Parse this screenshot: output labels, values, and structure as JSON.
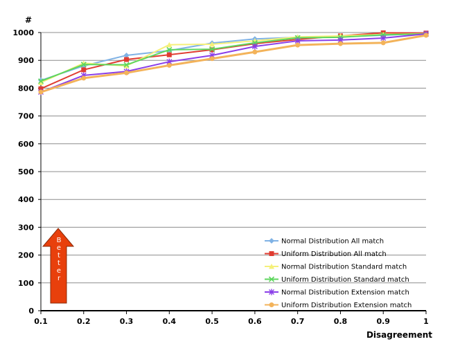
{
  "chart_data": {
    "type": "line",
    "xlabel": "Disagreement",
    "ylabel": "#",
    "xlim": [
      0.1,
      1
    ],
    "ylim": [
      0,
      1000
    ],
    "x_ticks": [
      "0.1",
      "0.2",
      "0.3",
      "0.4",
      "0.5",
      "0.6",
      "0.7",
      "0.8",
      "0.9",
      "1"
    ],
    "y_ticks": [
      "0",
      "100",
      "200",
      "300",
      "400",
      "500",
      "600",
      "700",
      "800",
      "900",
      "1000"
    ],
    "grid": "horizontal",
    "legend_position": "bottom-right",
    "x": [
      0.1,
      0.2,
      0.3,
      0.4,
      0.5,
      0.6,
      0.7,
      0.8,
      0.9,
      1.0
    ],
    "series": [
      {
        "name": "Normal Distribution All  match",
        "color": "#7fb2e5",
        "marker": "diamond",
        "values": [
          828,
          880,
          918,
          935,
          962,
          977,
          983,
          985,
          990,
          997
        ]
      },
      {
        "name": "Uniform Distribution All  match",
        "color": "#e03c31",
        "marker": "square",
        "values": [
          798,
          866,
          903,
          920,
          938,
          960,
          975,
          988,
          999,
          998
        ]
      },
      {
        "name": "Normal Distribution Standard  match",
        "color": "#f5f07a",
        "marker": "triangle",
        "values": [
          820,
          890,
          880,
          956,
          958,
          970,
          984,
          988,
          993,
          996
        ]
      },
      {
        "name": "Uniform Distribution Standard  match",
        "color": "#5ed65e",
        "marker": "x",
        "values": [
          825,
          885,
          884,
          938,
          940,
          963,
          981,
          983,
          992,
          995
        ]
      },
      {
        "name": "Normal Distribution Extension  match",
        "color": "#8a3ee8",
        "marker": "star",
        "values": [
          786,
          846,
          860,
          895,
          918,
          950,
          970,
          973,
          980,
          995
        ]
      },
      {
        "name": "Uniform Distribution Extension  match",
        "color": "#f3b35a",
        "marker": "circle",
        "values": [
          786,
          836,
          855,
          882,
          906,
          930,
          955,
          960,
          963,
          990
        ]
      }
    ]
  },
  "annotation": {
    "text": "Better",
    "letters": [
      "B",
      "e",
      "t",
      "t",
      "e",
      "r"
    ],
    "color": "#e8400c"
  }
}
